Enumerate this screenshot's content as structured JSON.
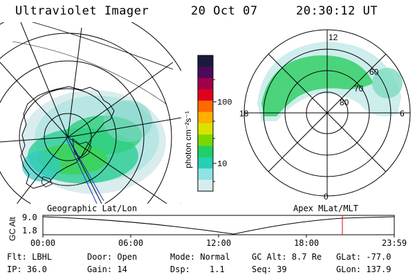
{
  "header": {
    "instrument": "Ultraviolet Imager",
    "date": "20 Oct 07",
    "time": "20:30:12 UT"
  },
  "colorbar": {
    "unit": "photon cm⁻²s⁻¹",
    "tick_100": "100",
    "tick_10": "10",
    "colors": [
      "#1a1a40",
      "#4b0a5a",
      "#a0004a",
      "#e0001e",
      "#ff6a00",
      "#ffb000",
      "#d8e400",
      "#7ad800",
      "#1fd066",
      "#27cfb6",
      "#8fe3e3",
      "#d7eded"
    ]
  },
  "left_map": {
    "caption": "Geographic Lat/Lon"
  },
  "right_map": {
    "caption": "Apex MLat/MLT",
    "mlt_top": "12",
    "mlt_bottom": "0",
    "mlt_left": "18",
    "mlt_right": "6",
    "lat_60": "60",
    "lat_70": "70",
    "lat_80": "80"
  },
  "altitude_plot": {
    "ylabel": "GC Alt",
    "y_top": "9.0",
    "y_bottom": "1.8",
    "x_ticks": [
      "00:00",
      "06:00",
      "12:00",
      "18:00",
      "23:59"
    ],
    "current_marker_color": "#e00000"
  },
  "info": {
    "flt": "Flt: LBHL",
    "ip": "IP: 36.0",
    "door": "Door: Open",
    "gain": "Gain: 14",
    "mode": "Mode: Normal",
    "dsp_label": "Dsp:",
    "dsp_value": "1.1",
    "gcalt": "GC Alt: 8.7 Re",
    "seq": "Seq: 39",
    "glat": "GLat: -77.0",
    "glon": "GLon: 137.9"
  }
}
